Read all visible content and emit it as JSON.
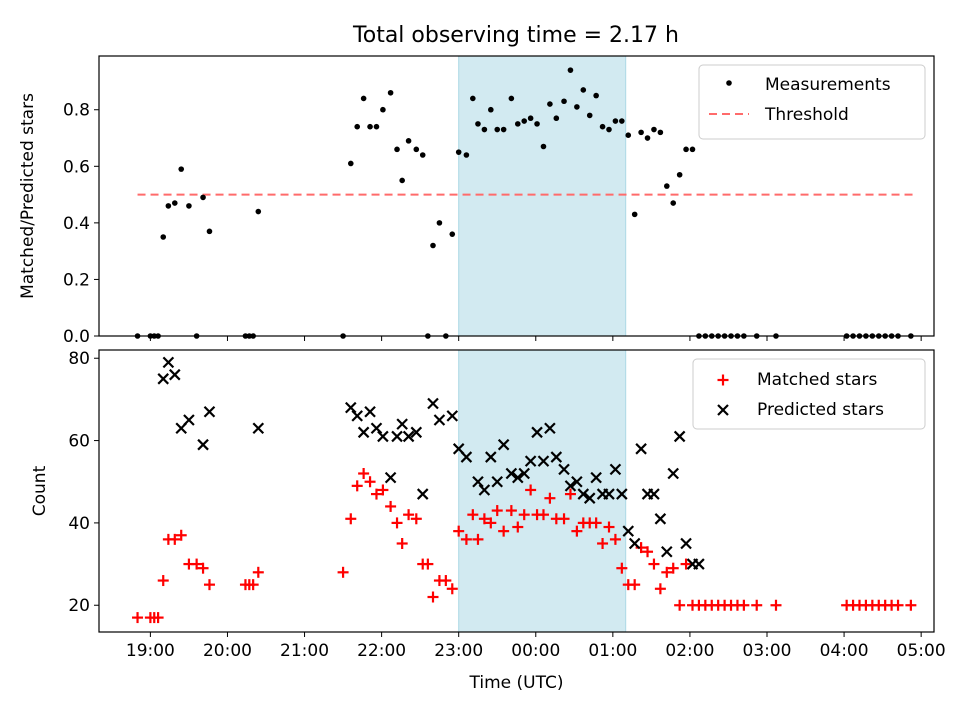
{
  "title": "Total observing time = 2.17 h",
  "colors": {
    "shade": "#add8e6",
    "measure": "#000000",
    "threshold": "#ff6b6b",
    "matched": "#ff0000",
    "predicted": "#000000"
  },
  "chart_data": [
    {
      "type": "scatter",
      "ylabel": "Matched/Predicted stars",
      "ylim": [
        0,
        0.99
      ],
      "yticks": [
        "0.0",
        "0.2",
        "0.4",
        "0.6",
        "0.8"
      ],
      "shaded_span": [
        "23:00",
        "01:10"
      ],
      "legend": {
        "placement": "top-right",
        "entries": [
          "Measurements",
          "Threshold"
        ]
      },
      "threshold": {
        "name": "Threshold",
        "value": 0.5,
        "from": "18:50",
        "to": "04:55"
      },
      "measurements": [
        [
          "18:50",
          0
        ],
        [
          "19:00",
          0
        ],
        [
          "19:03",
          0
        ],
        [
          "19:06",
          0
        ],
        [
          "19:10",
          0.35
        ],
        [
          "19:14",
          0.46
        ],
        [
          "19:19",
          0.47
        ],
        [
          "19:24",
          0.59
        ],
        [
          "19:30",
          0.46
        ],
        [
          "19:36",
          0
        ],
        [
          "19:41",
          0.49
        ],
        [
          "19:46",
          0.37
        ],
        [
          "20:14",
          0
        ],
        [
          "20:17",
          0
        ],
        [
          "20:20",
          0
        ],
        [
          "20:24",
          0.44
        ],
        [
          "21:30",
          0
        ],
        [
          "21:36",
          0.61
        ],
        [
          "21:41",
          0.74
        ],
        [
          "21:46",
          0.84
        ],
        [
          "21:51",
          0.74
        ],
        [
          "21:56",
          0.74
        ],
        [
          "22:01",
          0.8
        ],
        [
          "22:07",
          0.86
        ],
        [
          "22:12",
          0.66
        ],
        [
          "22:16",
          0.55
        ],
        [
          "22:21",
          0.69
        ],
        [
          "22:27",
          0.66
        ],
        [
          "22:32",
          0.64
        ],
        [
          "22:36",
          0
        ],
        [
          "22:40",
          0.32
        ],
        [
          "22:45",
          0.4
        ],
        [
          "22:50",
          0
        ],
        [
          "22:55",
          0.36
        ],
        [
          "23:00",
          0.65
        ],
        [
          "23:06",
          0.64
        ],
        [
          "23:11",
          0.84
        ],
        [
          "23:15",
          0.75
        ],
        [
          "23:20",
          0.73
        ],
        [
          "23:25",
          0.8
        ],
        [
          "23:30",
          0.73
        ],
        [
          "23:35",
          0.73
        ],
        [
          "23:41",
          0.84
        ],
        [
          "23:46",
          0.75
        ],
        [
          "23:51",
          0.76
        ],
        [
          "23:56",
          0.77
        ],
        [
          "00:01",
          0.75
        ],
        [
          "00:06",
          0.67
        ],
        [
          "00:11",
          0.82
        ],
        [
          "00:16",
          0.77
        ],
        [
          "00:22",
          0.83
        ],
        [
          "00:27",
          0.94
        ],
        [
          "00:32",
          0.81
        ],
        [
          "00:37",
          0.87
        ],
        [
          "00:42",
          0.78
        ],
        [
          "00:47",
          0.85
        ],
        [
          "00:52",
          0.74
        ],
        [
          "00:57",
          0.73
        ],
        [
          "01:02",
          0.76
        ],
        [
          "01:07",
          0.76
        ],
        [
          "01:12",
          0.71
        ],
        [
          "01:17",
          0.43
        ],
        [
          "01:22",
          0.72
        ],
        [
          "01:27",
          0.7
        ],
        [
          "01:32",
          0.73
        ],
        [
          "01:37",
          0.72
        ],
        [
          "01:42",
          0.53
        ],
        [
          "01:47",
          0.47
        ],
        [
          "01:52",
          0.57
        ],
        [
          "01:57",
          0.66
        ],
        [
          "02:02",
          0.66
        ],
        [
          "02:07",
          0
        ],
        [
          "02:12",
          0
        ],
        [
          "02:17",
          0
        ],
        [
          "02:22",
          0
        ],
        [
          "02:27",
          0
        ],
        [
          "02:32",
          0
        ],
        [
          "02:37",
          0
        ],
        [
          "02:42",
          0
        ],
        [
          "02:52",
          0
        ],
        [
          "03:07",
          0
        ],
        [
          "04:02",
          0
        ],
        [
          "04:07",
          0
        ],
        [
          "04:12",
          0
        ],
        [
          "04:17",
          0
        ],
        [
          "04:22",
          0
        ],
        [
          "04:27",
          0
        ],
        [
          "04:32",
          0
        ],
        [
          "04:37",
          0
        ],
        [
          "04:42",
          0
        ],
        [
          "04:52",
          0
        ]
      ]
    },
    {
      "type": "scatter",
      "xlabel": "Time (UTC)",
      "ylabel": "Count",
      "ylim": [
        13.5,
        82
      ],
      "yticks": [
        "20",
        "40",
        "60",
        "80"
      ],
      "xticks": [
        "19:00",
        "20:00",
        "21:00",
        "22:00",
        "23:00",
        "00:00",
        "01:00",
        "02:00",
        "03:00",
        "04:00",
        "05:00"
      ],
      "shaded_span": [
        "23:00",
        "01:10"
      ],
      "legend": {
        "placement": "top-right",
        "entries": [
          "Matched stars",
          "Predicted stars"
        ]
      },
      "series": [
        {
          "name": "Matched stars",
          "marker": "+",
          "points": [
            [
              "18:50",
              17
            ],
            [
              "19:00",
              17
            ],
            [
              "19:03",
              17
            ],
            [
              "19:06",
              17
            ],
            [
              "19:10",
              26
            ],
            [
              "19:14",
              36
            ],
            [
              "19:19",
              36
            ],
            [
              "19:24",
              37
            ],
            [
              "19:30",
              30
            ],
            [
              "19:36",
              30
            ],
            [
              "19:41",
              29
            ],
            [
              "19:46",
              25
            ],
            [
              "20:14",
              25
            ],
            [
              "20:17",
              25
            ],
            [
              "20:20",
              25
            ],
            [
              "20:24",
              28
            ],
            [
              "21:30",
              28
            ],
            [
              "21:36",
              41
            ],
            [
              "21:41",
              49
            ],
            [
              "21:46",
              52
            ],
            [
              "21:51",
              50
            ],
            [
              "21:56",
              47
            ],
            [
              "22:01",
              48
            ],
            [
              "22:07",
              44
            ],
            [
              "22:12",
              40
            ],
            [
              "22:16",
              35
            ],
            [
              "22:21",
              42
            ],
            [
              "22:27",
              41
            ],
            [
              "22:32",
              30
            ],
            [
              "22:36",
              30
            ],
            [
              "22:40",
              22
            ],
            [
              "22:45",
              26
            ],
            [
              "22:50",
              26
            ],
            [
              "22:55",
              24
            ],
            [
              "23:00",
              38
            ],
            [
              "23:06",
              36
            ],
            [
              "23:11",
              42
            ],
            [
              "23:15",
              36
            ],
            [
              "23:20",
              41
            ],
            [
              "23:25",
              40
            ],
            [
              "23:30",
              43
            ],
            [
              "23:35",
              38
            ],
            [
              "23:41",
              43
            ],
            [
              "23:46",
              39
            ],
            [
              "23:51",
              42
            ],
            [
              "23:56",
              48
            ],
            [
              "00:01",
              42
            ],
            [
              "00:06",
              42
            ],
            [
              "00:11",
              46
            ],
            [
              "00:16",
              41
            ],
            [
              "00:22",
              41
            ],
            [
              "00:27",
              47
            ],
            [
              "00:32",
              38
            ],
            [
              "00:37",
              40
            ],
            [
              "00:42",
              40
            ],
            [
              "00:47",
              40
            ],
            [
              "00:52",
              35
            ],
            [
              "00:57",
              39
            ],
            [
              "01:02",
              36
            ],
            [
              "01:07",
              29
            ],
            [
              "01:12",
              25
            ],
            [
              "01:17",
              25
            ],
            [
              "01:22",
              34
            ],
            [
              "01:27",
              33
            ],
            [
              "01:32",
              30
            ],
            [
              "01:37",
              24
            ],
            [
              "01:42",
              28
            ],
            [
              "01:47",
              29
            ],
            [
              "01:52",
              20
            ],
            [
              "01:57",
              30
            ],
            [
              "02:02",
              20
            ],
            [
              "02:07",
              20
            ],
            [
              "02:12",
              20
            ],
            [
              "02:17",
              20
            ],
            [
              "02:22",
              20
            ],
            [
              "02:27",
              20
            ],
            [
              "02:32",
              20
            ],
            [
              "02:37",
              20
            ],
            [
              "02:42",
              20
            ],
            [
              "02:52",
              20
            ],
            [
              "03:07",
              20
            ],
            [
              "04:02",
              20
            ],
            [
              "04:07",
              20
            ],
            [
              "04:12",
              20
            ],
            [
              "04:17",
              20
            ],
            [
              "04:22",
              20
            ],
            [
              "04:27",
              20
            ],
            [
              "04:32",
              20
            ],
            [
              "04:37",
              20
            ],
            [
              "04:42",
              20
            ],
            [
              "04:52",
              20
            ]
          ]
        },
        {
          "name": "Predicted stars",
          "marker": "x",
          "points": [
            [
              "19:10",
              75
            ],
            [
              "19:14",
              79
            ],
            [
              "19:19",
              76
            ],
            [
              "19:24",
              63
            ],
            [
              "19:30",
              65
            ],
            [
              "19:41",
              59
            ],
            [
              "19:46",
              67
            ],
            [
              "20:24",
              63
            ],
            [
              "21:36",
              68
            ],
            [
              "21:41",
              66
            ],
            [
              "21:46",
              62
            ],
            [
              "21:51",
              67
            ],
            [
              "21:56",
              63
            ],
            [
              "22:01",
              61
            ],
            [
              "22:07",
              51
            ],
            [
              "22:12",
              61
            ],
            [
              "22:16",
              64
            ],
            [
              "22:21",
              61
            ],
            [
              "22:27",
              62
            ],
            [
              "22:32",
              47
            ],
            [
              "22:40",
              69
            ],
            [
              "22:45",
              65
            ],
            [
              "22:55",
              66
            ],
            [
              "23:00",
              58
            ],
            [
              "23:06",
              56
            ],
            [
              "23:15",
              50
            ],
            [
              "23:20",
              48
            ],
            [
              "23:25",
              56
            ],
            [
              "23:30",
              50
            ],
            [
              "23:35",
              59
            ],
            [
              "23:41",
              52
            ],
            [
              "23:46",
              51
            ],
            [
              "23:51",
              52
            ],
            [
              "23:56",
              55
            ],
            [
              "00:01",
              62
            ],
            [
              "00:06",
              55
            ],
            [
              "00:11",
              63
            ],
            [
              "00:16",
              56
            ],
            [
              "00:22",
              53
            ],
            [
              "00:27",
              49
            ],
            [
              "00:32",
              50
            ],
            [
              "00:37",
              47
            ],
            [
              "00:42",
              46
            ],
            [
              "00:47",
              51
            ],
            [
              "00:52",
              47
            ],
            [
              "00:57",
              47
            ],
            [
              "01:02",
              53
            ],
            [
              "01:07",
              47
            ],
            [
              "01:12",
              38
            ],
            [
              "01:17",
              35
            ],
            [
              "01:22",
              58
            ],
            [
              "01:27",
              47
            ],
            [
              "01:32",
              47
            ],
            [
              "01:37",
              41
            ],
            [
              "01:42",
              33
            ],
            [
              "01:47",
              52
            ],
            [
              "01:52",
              61
            ],
            [
              "01:57",
              35
            ],
            [
              "02:02",
              30
            ],
            [
              "02:07",
              30
            ]
          ]
        }
      ]
    }
  ]
}
